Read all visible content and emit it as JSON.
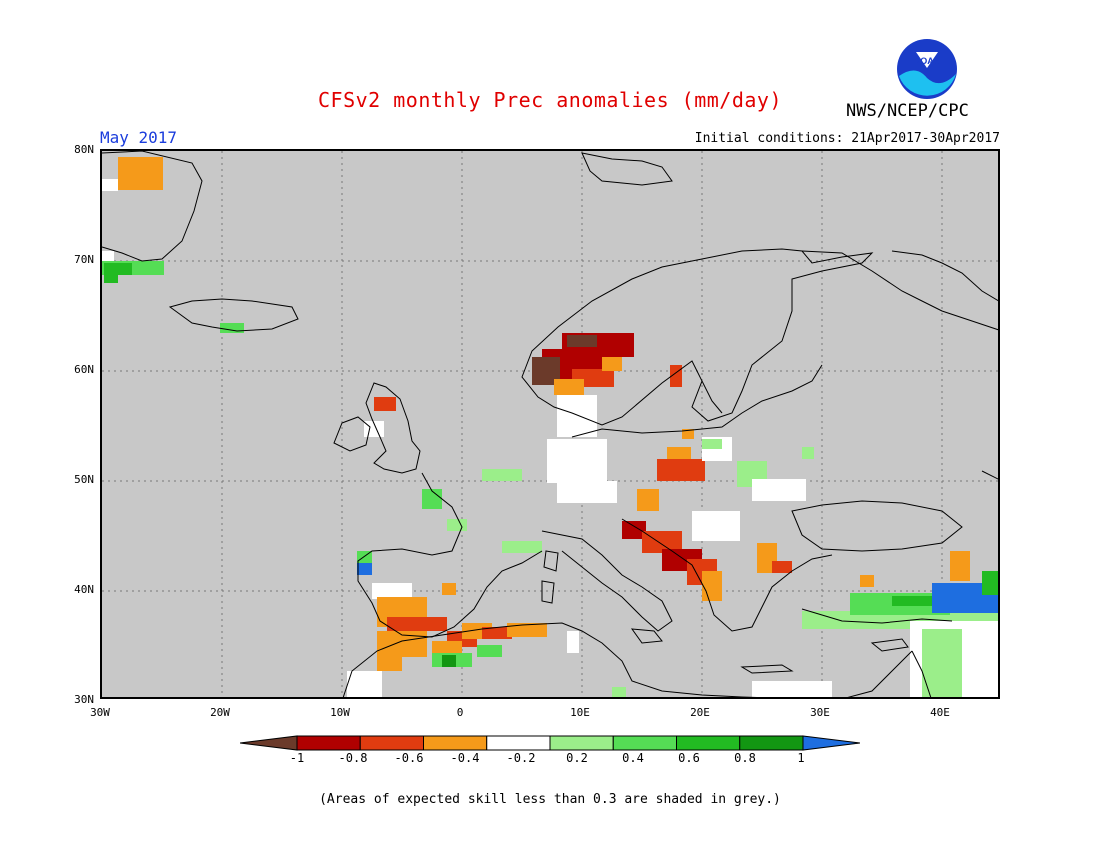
{
  "title": "CFSv2 monthly Prec anomalies (mm/day)",
  "agency": "NWS/NCEP/CPC",
  "logo_text": "NOAA",
  "month": "May 2017",
  "initial_conditions": "Initial conditions: 21Apr2017-30Apr2017",
  "lat_labels": [
    "80N",
    "70N",
    "60N",
    "50N",
    "40N",
    "30N"
  ],
  "lon_labels": [
    "30W",
    "20W",
    "10W",
    "0",
    "10E",
    "20E",
    "30E",
    "40E"
  ],
  "colorbar": {
    "ticks": [
      "-1",
      "-0.8",
      "-0.6",
      "-0.4",
      "-0.2",
      "0.2",
      "0.4",
      "0.6",
      "0.8",
      "1"
    ],
    "colors": [
      "#6b3a2a",
      "#b00000",
      "#e03c10",
      "#f59a1a",
      "#ffffff",
      "#9bee8a",
      "#55dd55",
      "#22bb22",
      "#129612",
      "#1e6ee0"
    ]
  },
  "note": "(Areas of expected skill less than 0.3 are shaded in grey.)",
  "colors": {
    "background_grey": "#c8c8c8",
    "title": "#e00000",
    "month": "#1a3cdc"
  }
}
